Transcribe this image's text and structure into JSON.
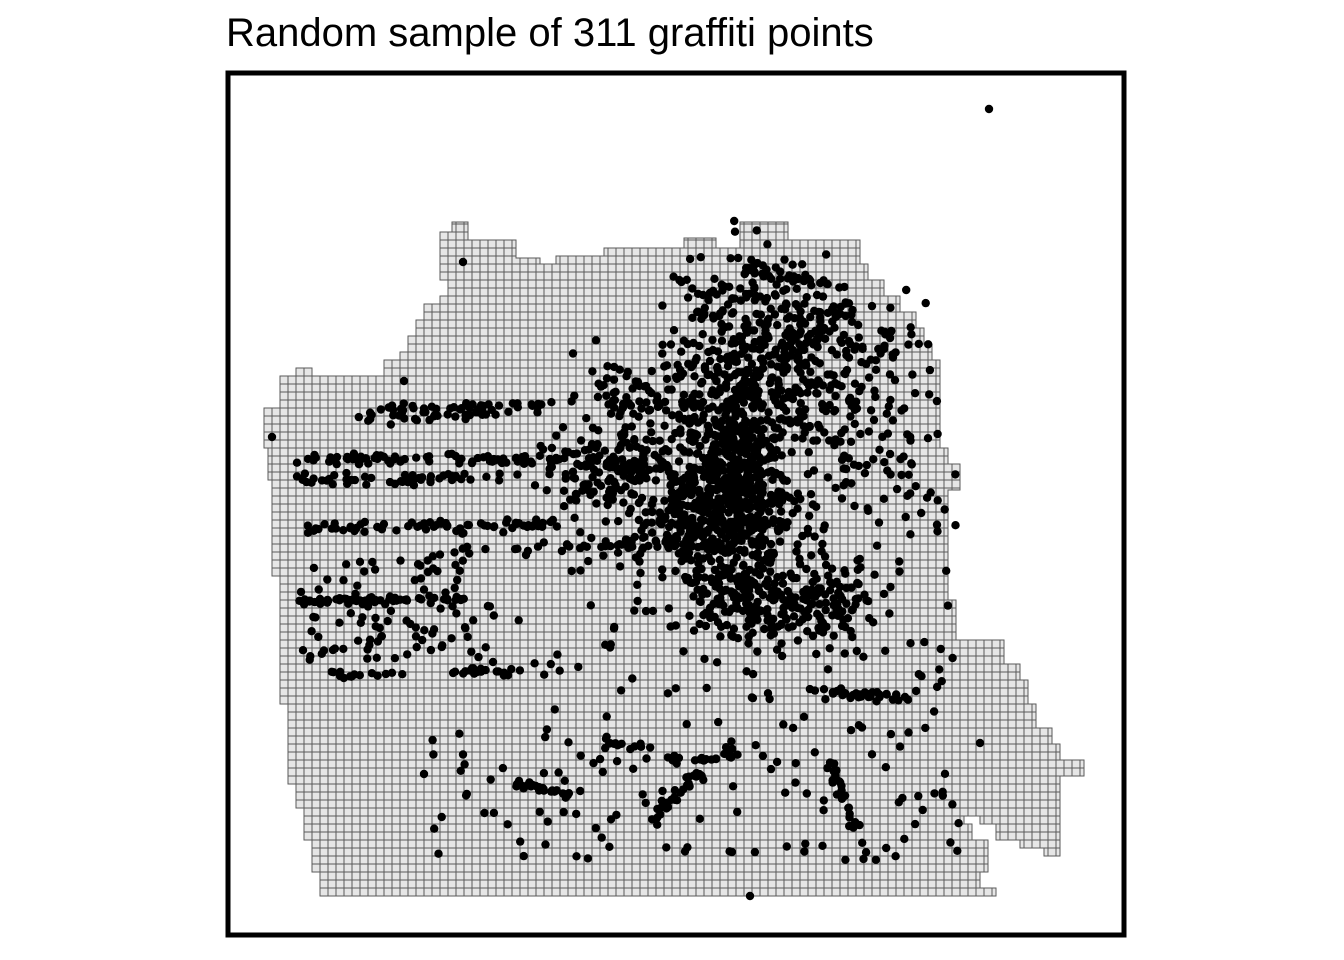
{
  "title": "Random sample of 311 graffiti points",
  "colors": {
    "cell_fill": "#e6e6e6",
    "cell_stroke": "#5a5a5a",
    "point": "#000000",
    "frame": "#000000",
    "background": "#ffffff"
  },
  "map": {
    "layers": [
      {
        "name": "grid",
        "description": "regular square grid cells covering the city boundary"
      },
      {
        "name": "graffiti-points",
        "description": "random sample of 311 graffiti report locations"
      }
    ]
  }
}
